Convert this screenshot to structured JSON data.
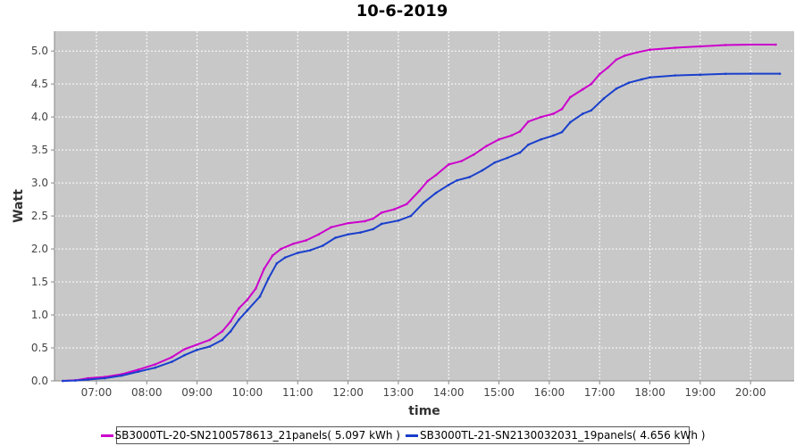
{
  "chart_data": {
    "type": "line",
    "title": "10-6-2019",
    "xlabel": "time",
    "ylabel": "Watt",
    "xlim": [
      "06:10",
      "20:52"
    ],
    "ylim": [
      0.0,
      5.3
    ],
    "x_ticks": [
      "07:00",
      "08:00",
      "09:00",
      "10:00",
      "11:00",
      "12:00",
      "13:00",
      "14:00",
      "15:00",
      "16:00",
      "17:00",
      "18:00",
      "19:00",
      "20:00"
    ],
    "y_ticks": [
      "0.0",
      "0.5",
      "1.0",
      "1.5",
      "2.0",
      "2.5",
      "3.0",
      "3.5",
      "4.0",
      "4.5",
      "5.0"
    ],
    "grid": true,
    "legend_position": "bottom",
    "series": [
      {
        "name": "SB3000TL-20-SN2100578613_21panels( 5.097 kWh )",
        "color": "#cc00cc",
        "points": [
          [
            "06:20",
            0.0
          ],
          [
            "06:35",
            0.01
          ],
          [
            "06:50",
            0.04
          ],
          [
            "07:10",
            0.06
          ],
          [
            "07:30",
            0.1
          ],
          [
            "07:50",
            0.17
          ],
          [
            "08:10",
            0.25
          ],
          [
            "08:30",
            0.36
          ],
          [
            "08:45",
            0.48
          ],
          [
            "09:00",
            0.55
          ],
          [
            "09:15",
            0.62
          ],
          [
            "09:30",
            0.75
          ],
          [
            "09:40",
            0.9
          ],
          [
            "09:50",
            1.1
          ],
          [
            "10:00",
            1.23
          ],
          [
            "10:10",
            1.4
          ],
          [
            "10:20",
            1.7
          ],
          [
            "10:30",
            1.9
          ],
          [
            "10:40",
            2.0
          ],
          [
            "10:55",
            2.08
          ],
          [
            "11:10",
            2.13
          ],
          [
            "11:25",
            2.22
          ],
          [
            "11:40",
            2.33
          ],
          [
            "12:00",
            2.39
          ],
          [
            "12:20",
            2.42
          ],
          [
            "12:30",
            2.46
          ],
          [
            "12:40",
            2.55
          ],
          [
            "12:55",
            2.6
          ],
          [
            "13:10",
            2.68
          ],
          [
            "13:25",
            2.88
          ],
          [
            "13:35",
            3.03
          ],
          [
            "13:45",
            3.12
          ],
          [
            "14:00",
            3.28
          ],
          [
            "14:15",
            3.33
          ],
          [
            "14:30",
            3.43
          ],
          [
            "14:45",
            3.56
          ],
          [
            "15:00",
            3.66
          ],
          [
            "15:15",
            3.72
          ],
          [
            "15:25",
            3.78
          ],
          [
            "15:35",
            3.93
          ],
          [
            "15:50",
            4.0
          ],
          [
            "16:05",
            4.05
          ],
          [
            "16:15",
            4.12
          ],
          [
            "16:25",
            4.3
          ],
          [
            "16:40",
            4.42
          ],
          [
            "16:50",
            4.5
          ],
          [
            "17:00",
            4.65
          ],
          [
            "17:10",
            4.75
          ],
          [
            "17:20",
            4.87
          ],
          [
            "17:30",
            4.93
          ],
          [
            "17:45",
            4.98
          ],
          [
            "18:00",
            5.02
          ],
          [
            "18:30",
            5.05
          ],
          [
            "19:00",
            5.07
          ],
          [
            "19:30",
            5.09
          ],
          [
            "20:00",
            5.097
          ],
          [
            "20:30",
            5.097
          ]
        ]
      },
      {
        "name": "SB3000TL-21-SN2130032031_19panels( 4.656 kWh )",
        "color": "#1a3fcc",
        "points": [
          [
            "06:20",
            0.0
          ],
          [
            "06:35",
            0.005
          ],
          [
            "06:50",
            0.02
          ],
          [
            "07:10",
            0.04
          ],
          [
            "07:30",
            0.08
          ],
          [
            "07:50",
            0.14
          ],
          [
            "08:10",
            0.2
          ],
          [
            "08:30",
            0.29
          ],
          [
            "08:45",
            0.39
          ],
          [
            "09:00",
            0.47
          ],
          [
            "09:15",
            0.52
          ],
          [
            "09:30",
            0.62
          ],
          [
            "09:40",
            0.75
          ],
          [
            "09:50",
            0.93
          ],
          [
            "10:00",
            1.07
          ],
          [
            "10:15",
            1.28
          ],
          [
            "10:25",
            1.55
          ],
          [
            "10:35",
            1.78
          ],
          [
            "10:45",
            1.87
          ],
          [
            "11:00",
            1.94
          ],
          [
            "11:15",
            1.98
          ],
          [
            "11:30",
            2.05
          ],
          [
            "11:45",
            2.17
          ],
          [
            "12:00",
            2.22
          ],
          [
            "12:15",
            2.25
          ],
          [
            "12:30",
            2.3
          ],
          [
            "12:40",
            2.38
          ],
          [
            "13:00",
            2.43
          ],
          [
            "13:15",
            2.5
          ],
          [
            "13:30",
            2.7
          ],
          [
            "13:45",
            2.85
          ],
          [
            "14:00",
            2.97
          ],
          [
            "14:10",
            3.04
          ],
          [
            "14:25",
            3.09
          ],
          [
            "14:40",
            3.19
          ],
          [
            "14:55",
            3.31
          ],
          [
            "15:10",
            3.38
          ],
          [
            "15:25",
            3.46
          ],
          [
            "15:35",
            3.58
          ],
          [
            "15:50",
            3.66
          ],
          [
            "16:05",
            3.72
          ],
          [
            "16:15",
            3.77
          ],
          [
            "16:25",
            3.92
          ],
          [
            "16:40",
            4.05
          ],
          [
            "16:50",
            4.1
          ],
          [
            "17:05",
            4.28
          ],
          [
            "17:20",
            4.43
          ],
          [
            "17:35",
            4.52
          ],
          [
            "17:50",
            4.57
          ],
          [
            "18:00",
            4.6
          ],
          [
            "18:30",
            4.63
          ],
          [
            "19:00",
            4.64
          ],
          [
            "19:30",
            4.654
          ],
          [
            "20:00",
            4.656
          ],
          [
            "20:35",
            4.656
          ]
        ]
      }
    ]
  }
}
